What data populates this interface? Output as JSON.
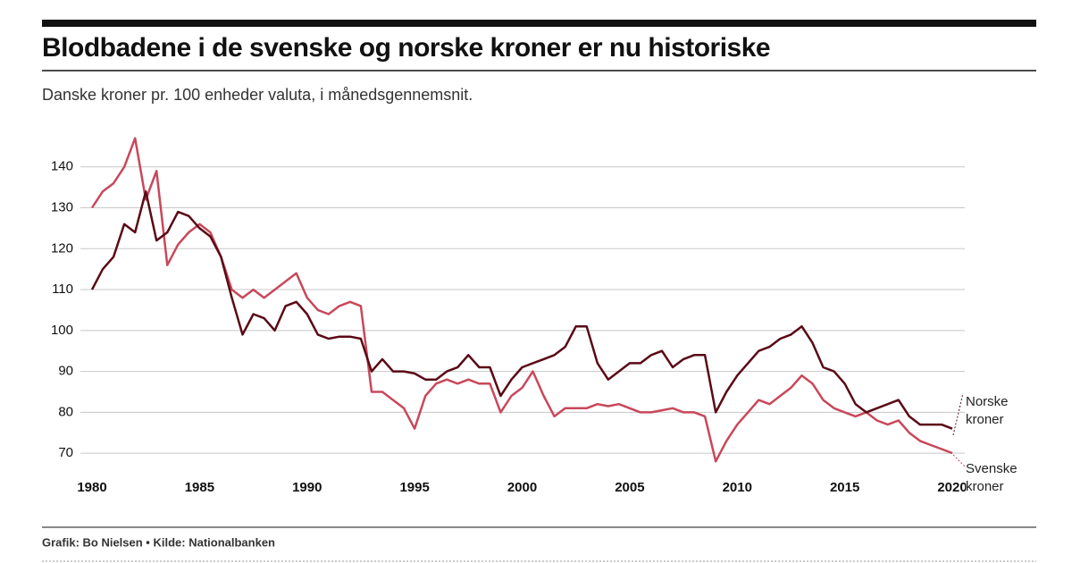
{
  "chart_data": {
    "type": "line",
    "title": "Blodbadene i de svenske og norske kroner er nu historiske",
    "subtitle": "Danske kroner pr. 100 enheder valuta, i månedsgennemsnit.",
    "source": "Grafik: Bo Nielsen • Kilde: Nationalbanken",
    "x": [
      1980,
      1980.5,
      1981,
      1981.5,
      1982,
      1982.5,
      1983,
      1983.5,
      1984,
      1984.5,
      1985,
      1985.5,
      1986,
      1986.5,
      1987,
      1987.5,
      1988,
      1988.5,
      1989,
      1989.5,
      1990,
      1990.5,
      1991,
      1991.5,
      1992,
      1992.5,
      1993,
      1993.5,
      1994,
      1994.5,
      1995,
      1995.5,
      1996,
      1996.5,
      1997,
      1997.5,
      1998,
      1998.5,
      1999,
      1999.5,
      2000,
      2000.5,
      2001,
      2001.5,
      2002,
      2002.5,
      2003,
      2003.5,
      2004,
      2004.5,
      2005,
      2005.5,
      2006,
      2006.5,
      2007,
      2007.5,
      2008,
      2008.5,
      2009,
      2009.5,
      2010,
      2010.5,
      2011,
      2011.5,
      2012,
      2012.5,
      2013,
      2013.5,
      2014,
      2014.5,
      2015,
      2015.5,
      2016,
      2016.5,
      2017,
      2017.5,
      2018,
      2018.5,
      2019,
      2019.5,
      2020
    ],
    "series": [
      {
        "name": "Norske kroner",
        "color": "#5a0a16",
        "values": [
          110,
          115,
          118,
          126,
          124,
          134,
          122,
          124,
          129,
          128,
          125,
          123,
          118,
          108,
          99,
          104,
          103,
          100,
          106,
          107,
          104,
          99,
          98,
          98.5,
          98.5,
          98,
          90,
          93,
          90,
          90,
          89.5,
          88,
          88,
          90,
          91,
          94,
          91,
          91,
          84,
          88,
          91,
          92,
          93,
          94,
          96,
          101,
          101,
          92,
          88,
          90,
          92,
          92,
          94,
          95,
          91,
          93,
          94,
          94,
          80,
          85,
          89,
          92,
          95,
          96,
          98,
          99,
          101,
          97,
          91,
          90,
          87,
          82,
          80,
          81,
          82,
          83,
          79,
          77,
          77,
          77,
          76
        ]
      },
      {
        "name": "Svenske kroner",
        "color": "#c8485a",
        "values": [
          130,
          134,
          136,
          140,
          147,
          132,
          139,
          116,
          121,
          124,
          126,
          124,
          118,
          110,
          108,
          110,
          108,
          110,
          112,
          114,
          108,
          105,
          104,
          106,
          107,
          106,
          85,
          85,
          83,
          81,
          76,
          84,
          87,
          88,
          87,
          88,
          87,
          87,
          80,
          84,
          86,
          90,
          84,
          79,
          81,
          81,
          81,
          82,
          81.5,
          82,
          81,
          80,
          80,
          80.5,
          81,
          80,
          80,
          79,
          68,
          73,
          77,
          80,
          83,
          82,
          84,
          86,
          89,
          87,
          83,
          81,
          80,
          79,
          80,
          78,
          77,
          78,
          75,
          73,
          72,
          71,
          70
        ]
      }
    ],
    "xlim": [
      1980,
      2020
    ],
    "xticks": [
      1980,
      1985,
      1990,
      1995,
      2000,
      2005,
      2010,
      2015,
      2020
    ],
    "ylim": [
      65,
      150
    ],
    "yticks": [
      70,
      80,
      90,
      100,
      110,
      120,
      130,
      140
    ],
    "grid": true
  }
}
